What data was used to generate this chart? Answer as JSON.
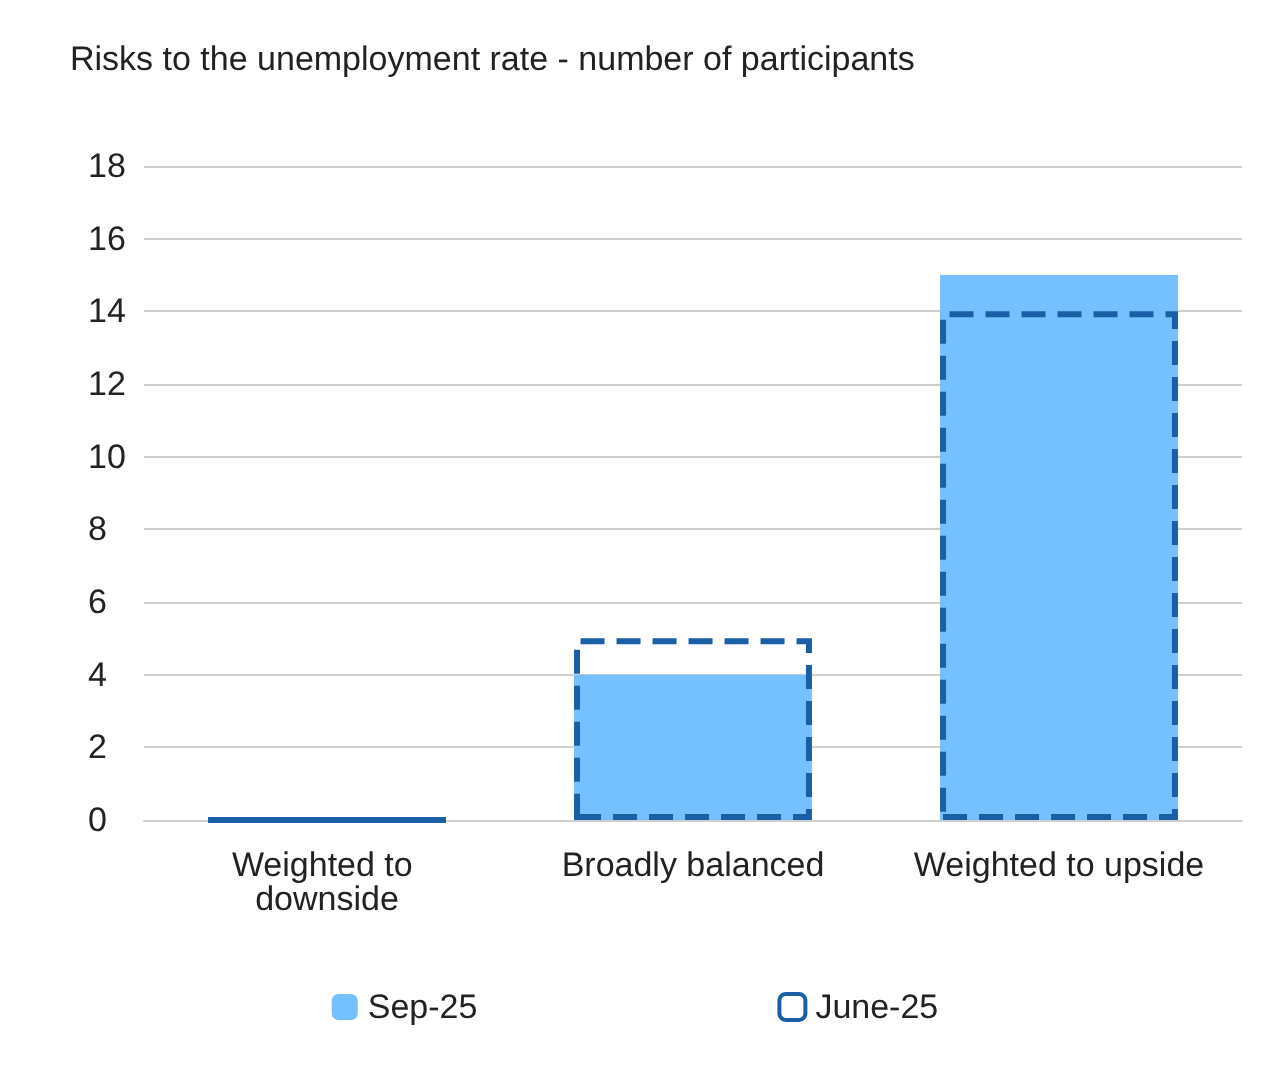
{
  "chart_data": {
    "type": "bar",
    "title": "Risks to the unemployment rate - number of participants",
    "categories": [
      "Weighted to downside",
      "Broadly balanced",
      "Weighted to upside"
    ],
    "series": [
      {
        "name": "Sep-25",
        "color": "#75c1ff",
        "values": [
          0,
          4,
          15
        ]
      },
      {
        "name": "June-25",
        "color": "#1a5fa6",
        "values": [
          0,
          5,
          14
        ],
        "line_style": "dashed"
      }
    ],
    "ylim": [
      0,
      18
    ],
    "yticks": [
      0,
      2,
      4,
      6,
      8,
      10,
      12,
      14,
      16,
      18
    ],
    "grid": "y",
    "legend": "bottom"
  }
}
